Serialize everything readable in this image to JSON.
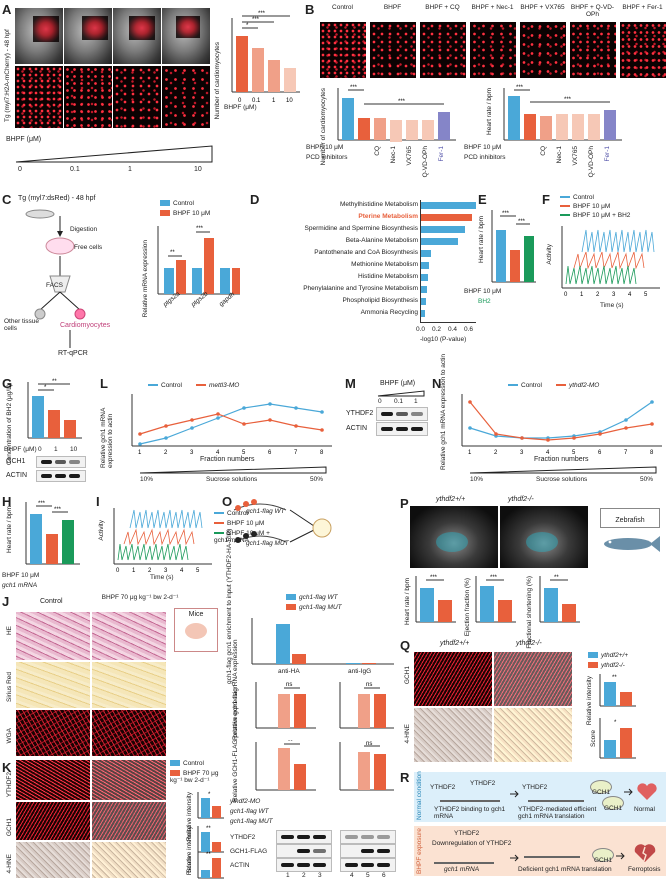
{
  "panels": {
    "A": {
      "label": "A",
      "fish_label": "Tg (myl7:H2A-mCherry) - 48 hpf",
      "conc_label": "BHPF (μM)",
      "conc_ticks": [
        "0",
        "0.1",
        "1",
        "10"
      ],
      "ylabel": "Number of cardiomyocytes",
      "sig": [
        "***",
        "***",
        "*"
      ]
    },
    "B": {
      "label": "B",
      "columns": [
        "Control",
        "BHPF",
        "BHPF + CQ",
        "BHPF + Nec-1",
        "BHPF + VX765",
        "BHPF + Q-VD-OPh",
        "BHPF + Fer-1"
      ],
      "ylabel_left": "Number of cardiomyocytes",
      "ylabel_right": "Heart rate / bpm",
      "row1": "BHPF 10 μM",
      "row2": "PCD inhibitors",
      "xcats": [
        "CQ",
        "Nec-1",
        "VX765",
        "Q-VD-OPh",
        "Fer-1"
      ],
      "sig": [
        "***",
        "***"
      ]
    },
    "C": {
      "label": "C",
      "title": "Tg (myl7:dsRed) - 48 hpf",
      "steps": [
        "Digestion",
        "Free cells",
        "FACS",
        "Other tissue cells",
        "Cardiomyocytes",
        "RT-qPCR"
      ],
      "ylabel": "Relative mRNA expression",
      "legend": [
        "Control",
        "BHPF 10 μM"
      ],
      "genes": [
        "ptgs2a",
        "ptgs2b",
        "gapdh"
      ],
      "sig": [
        "**",
        "***"
      ]
    },
    "D": {
      "label": "D",
      "xlabel": "-log10 (P-value)",
      "xticks": [
        "0.0",
        "0.2",
        "0.4",
        "0.6"
      ]
    },
    "E": {
      "label": "E",
      "ylabel": "Heart rate / bpm",
      "row1": "BHPF 10 μM",
      "row2": "BH2",
      "sig": [
        "***",
        "***"
      ]
    },
    "F": {
      "label": "F",
      "legend": [
        "Control",
        "BHPF 10 μM",
        "BHPF 10 μM + BH2"
      ],
      "ylabel": "Activity",
      "xlabel": "Time (s)"
    },
    "G": {
      "label": "G",
      "ylabel": "Concentration of BH2 (μg/L)",
      "row1": "BHPF (μM)",
      "ticks": [
        "0",
        "1",
        "10"
      ],
      "blots": [
        "GCH1",
        "ACTIN"
      ],
      "sig": [
        "*",
        "**"
      ]
    },
    "H": {
      "label": "H",
      "ylabel": "Heart rate / bpm",
      "row1": "BHPF 10 μM",
      "row2": "gch1 mRNA",
      "sig": [
        "***",
        "***"
      ]
    },
    "I": {
      "label": "I",
      "legend": [
        "Control",
        "BHPF 10 μM",
        "BHPF 10 μM + gch1 mRNA"
      ],
      "ylabel": "Activity",
      "xlabel": "Time (s)"
    },
    "J": {
      "label": "J",
      "cols": [
        "Control",
        "BHPF 70 μg kg⁻¹ bw 2-d⁻¹"
      ],
      "rows": [
        "HE",
        "Sirius Red",
        "WGA"
      ],
      "mice": "Mice"
    },
    "K": {
      "label": "K",
      "rows": [
        "YTHDF2",
        "GCH1",
        "4-HNE"
      ],
      "legend": [
        "Control",
        "BHPF 70 μg kg⁻¹ bw 2-d⁻¹"
      ],
      "ylabels": [
        "Relative intensity",
        "Relative intensity",
        "Score"
      ],
      "sig": [
        "*",
        "**",
        "**"
      ]
    },
    "L": {
      "label": "L",
      "ylabel": "Relative gch1 mRNA expression to actin",
      "legend": [
        "Control",
        "mettl3-MO"
      ],
      "xlabel": "Fraction numbers",
      "sucrose": [
        "10%",
        "Sucrose solutions",
        "50%"
      ]
    },
    "M": {
      "label": "M",
      "title": "BHPF (μM)",
      "ticks": [
        "0",
        "0.1",
        "1"
      ],
      "blots": [
        "YTHDF2",
        "ACTIN"
      ]
    },
    "N": {
      "label": "N",
      "ylabel": "Relative gch1 mRNA expression to actin",
      "legend": [
        "Control",
        "ythdf2-MO"
      ],
      "xlabel": "Fraction numbers",
      "sucrose": [
        "10%",
        "Sucrose solutions",
        "50%"
      ]
    },
    "O": {
      "label": "O",
      "constructs": [
        "gch1-flag WT",
        "gch1-flag MUT"
      ],
      "legend": [
        "gch1-flag WT",
        "gch1-flag MUT"
      ],
      "rip_ylabel": "gch1-flag gcn1 enrichment to input (YTHDF2-HA-RIP)",
      "rip_x": [
        "anti-HA",
        "anti-IgG"
      ],
      "rna_ylabel": "Relative gch1-flag RNA expression",
      "prot_ylabel": "Relative GCH1-FLAG protein expression",
      "sig": [
        "ns",
        "ns",
        "**",
        "ns"
      ],
      "rows": [
        "ythdf2-MO",
        "gch1-flag WT",
        "gch1-flag MUT"
      ],
      "blots": [
        "YTHDF2",
        "GCH1-FLAG",
        "ACTIN"
      ],
      "lanes": [
        "1",
        "2",
        "3",
        "4",
        "5",
        "6"
      ]
    },
    "P": {
      "label": "P",
      "genotypes": [
        "ythdf2+/+",
        "ythdf2-/-"
      ],
      "tag": "Zebrafish",
      "ylabels": [
        "Heart rate / bpm",
        "Ejection fraction (%)",
        "Fractional shortening (%)"
      ],
      "sig": [
        "***",
        "***",
        "**"
      ]
    },
    "Q": {
      "label": "Q",
      "genotypes": [
        "ythdf2+/+",
        "ythdf2-/-"
      ],
      "rows": [
        "GCH1",
        "4-HNE"
      ],
      "legend": [
        "ythdf2+/+",
        "ythdf2-/-"
      ],
      "ylabels": [
        "Relative intensity",
        "Score"
      ],
      "sig": [
        "**",
        "*"
      ]
    },
    "R": {
      "label": "R",
      "normal": "Normal condition",
      "exposure": "BHPF exposure",
      "n1": "YTHDF2 binding to gch1 mRNA",
      "n2": "YTHDF2-mediated efficient gch1 mRNA translation",
      "n3": "Normal",
      "e1": "Downregulation of YTHDF2",
      "e2": "Deficient gch1 mRNA translation",
      "e3": "Ferroptosis",
      "protein": "GCH1",
      "ythdf2": "YTHDF2",
      "mrna": "gch1 mRNA"
    }
  },
  "pathways": [
    {
      "name": "Methylhistidine Metabolism",
      "value": 0.62,
      "hl": false
    },
    {
      "name": "Pterine Metabolism",
      "value": 0.58,
      "hl": true
    },
    {
      "name": "Spermidine and Spermine Biosynthesis",
      "value": 0.5,
      "hl": false
    },
    {
      "name": "Beta-Alanine Metabolism",
      "value": 0.42,
      "hl": false
    },
    {
      "name": "Pantothenate and CoA Biosynthesis",
      "value": 0.12,
      "hl": false
    },
    {
      "name": "Methionine Metabolism",
      "value": 0.1,
      "hl": false
    },
    {
      "name": "Histidine Metabolism",
      "value": 0.09,
      "hl": false
    },
    {
      "name": "Phenylalanine and Tyrosine Metabolism",
      "value": 0.08,
      "hl": false
    },
    {
      "name": "Phospholipid Biosynthesis",
      "value": 0.07,
      "hl": false
    },
    {
      "name": "Ammonia Recycling",
      "value": 0.06,
      "hl": false
    }
  ],
  "colors": {
    "control": "#4aa8d8",
    "treat": "#e8603c",
    "treat_light": "#f0a088",
    "green": "#1a9a5a",
    "normal_bg": "#dceffa",
    "exposure_bg": "#fbe2d2"
  }
}
